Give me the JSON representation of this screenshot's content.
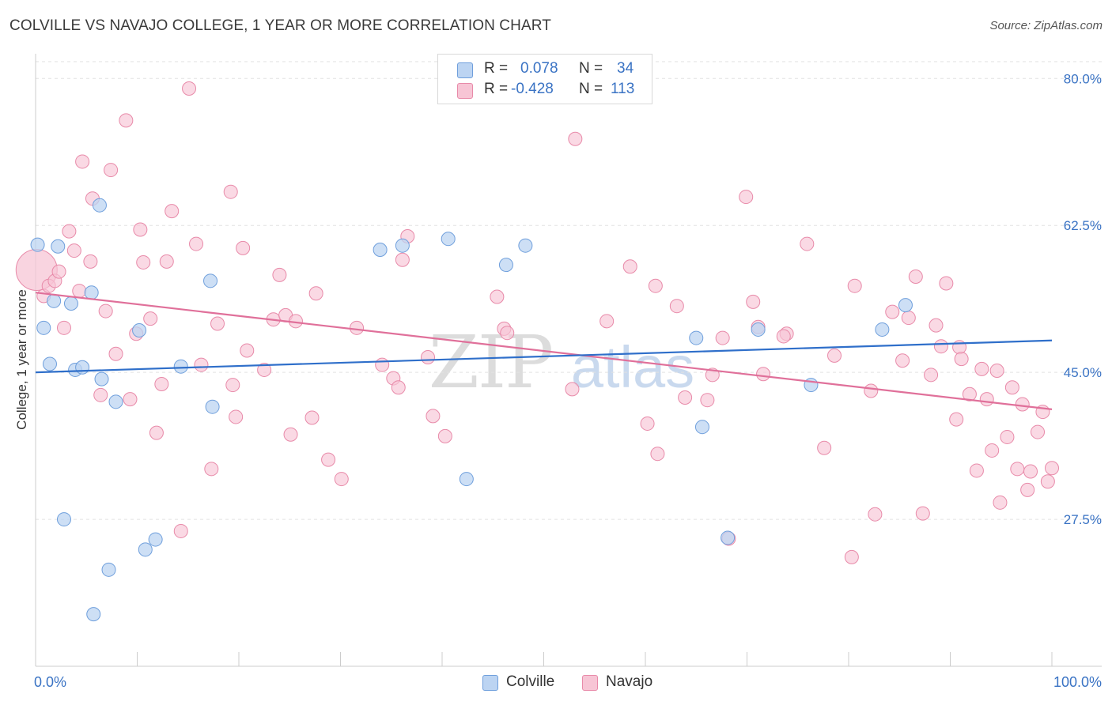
{
  "title": "COLVILLE VS NAVAJO COLLEGE, 1 YEAR OR MORE CORRELATION CHART",
  "source": "Source: ZipAtlas.com",
  "colors": {
    "colville_fill": "#bcd4f2",
    "colville_stroke": "#6f9fdc",
    "colville_line": "#2f6fca",
    "navajo_fill": "#f7c5d5",
    "navajo_stroke": "#e88aa9",
    "navajo_line": "#e0709a",
    "tick_label": "#3a73c4"
  },
  "legend": {
    "rows": [
      {
        "r_label": "R =",
        "r_value": "0.078",
        "n_label": "N =",
        "n_value": "34"
      },
      {
        "r_label": "R =",
        "r_value": "-0.428",
        "n_label": "N =",
        "n_value": "113"
      }
    ]
  },
  "bottom_legend": {
    "colville": "Colville",
    "navajo": "Navajo"
  },
  "chart_data": {
    "type": "scatter",
    "title": "COLVILLE VS NAVAJO COLLEGE, 1 YEAR OR MORE CORRELATION CHART",
    "xlabel": "",
    "ylabel": "College, 1 year or more",
    "xlim": [
      0,
      100
    ],
    "ylim": [
      10,
      82
    ],
    "x_tick_labels": {
      "left": "0.0%",
      "right": "100.0%"
    },
    "y_ticks": [
      {
        "value": 80.0,
        "label": "80.0%"
      },
      {
        "value": 62.5,
        "label": "62.5%"
      },
      {
        "value": 45.0,
        "label": "45.0%"
      },
      {
        "value": 27.5,
        "label": "27.5%"
      }
    ],
    "watermark": "ZIPatlas",
    "series": [
      {
        "name": "Colville",
        "r": 0.078,
        "n": 34,
        "trend": {
          "x": [
            0,
            100
          ],
          "y": [
            45.0,
            48.8
          ]
        },
        "points": [
          [
            0.2,
            60.2
          ],
          [
            0.8,
            50.3
          ],
          [
            1.4,
            46.0
          ],
          [
            1.8,
            53.5
          ],
          [
            2.2,
            60.0
          ],
          [
            2.8,
            27.5
          ],
          [
            3.5,
            53.2
          ],
          [
            3.9,
            45.3
          ],
          [
            4.6,
            45.6
          ],
          [
            5.5,
            54.5
          ],
          [
            6.3,
            64.9
          ],
          [
            6.5,
            44.2
          ],
          [
            7.2,
            21.5
          ],
          [
            5.7,
            16.2
          ],
          [
            7.9,
            41.5
          ],
          [
            10.2,
            50.0
          ],
          [
            10.8,
            23.9
          ],
          [
            11.8,
            25.1
          ],
          [
            14.3,
            45.7
          ],
          [
            17.4,
            40.9
          ],
          [
            17.2,
            55.9
          ],
          [
            33.9,
            59.6
          ],
          [
            36.1,
            60.1
          ],
          [
            40.6,
            60.9
          ],
          [
            42.4,
            32.3
          ],
          [
            46.3,
            57.8
          ],
          [
            48.2,
            60.1
          ],
          [
            65.6,
            38.5
          ],
          [
            65.0,
            49.1
          ],
          [
            71.1,
            50.1
          ],
          [
            68.1,
            25.3
          ],
          [
            76.3,
            43.5
          ],
          [
            83.3,
            50.1
          ],
          [
            85.6,
            53.0
          ]
        ]
      },
      {
        "name": "Navajo",
        "r": -0.428,
        "n": 113,
        "trend": {
          "x": [
            0,
            100
          ],
          "y": [
            54.5,
            40.6
          ]
        },
        "big_point": [
          0.1,
          57.2
        ],
        "points": [
          [
            0.8,
            54.1
          ],
          [
            1.3,
            55.3
          ],
          [
            1.9,
            55.9
          ],
          [
            2.3,
            57.0
          ],
          [
            2.8,
            50.3
          ],
          [
            3.3,
            61.8
          ],
          [
            3.8,
            59.5
          ],
          [
            4.3,
            54.7
          ],
          [
            4.6,
            70.1
          ],
          [
            5.4,
            58.2
          ],
          [
            5.6,
            65.7
          ],
          [
            6.4,
            42.3
          ],
          [
            6.9,
            52.3
          ],
          [
            7.4,
            69.1
          ],
          [
            7.9,
            47.2
          ],
          [
            8.9,
            75.0
          ],
          [
            9.3,
            41.8
          ],
          [
            9.9,
            49.6
          ],
          [
            10.3,
            62.0
          ],
          [
            10.6,
            58.1
          ],
          [
            11.3,
            51.4
          ],
          [
            11.9,
            37.8
          ],
          [
            12.4,
            43.6
          ],
          [
            12.9,
            58.2
          ],
          [
            13.4,
            64.2
          ],
          [
            14.3,
            26.1
          ],
          [
            15.1,
            78.8
          ],
          [
            15.8,
            60.3
          ],
          [
            16.3,
            45.9
          ],
          [
            17.3,
            33.5
          ],
          [
            17.9,
            50.8
          ],
          [
            19.2,
            66.5
          ],
          [
            19.4,
            43.5
          ],
          [
            19.7,
            39.7
          ],
          [
            20.4,
            59.8
          ],
          [
            20.8,
            47.6
          ],
          [
            22.5,
            45.3
          ],
          [
            23.4,
            51.3
          ],
          [
            24.0,
            56.6
          ],
          [
            24.6,
            51.8
          ],
          [
            25.1,
            37.6
          ],
          [
            25.6,
            51.1
          ],
          [
            27.2,
            39.6
          ],
          [
            27.6,
            54.4
          ],
          [
            28.8,
            34.6
          ],
          [
            30.1,
            32.3
          ],
          [
            31.6,
            50.3
          ],
          [
            34.1,
            45.9
          ],
          [
            35.2,
            44.3
          ],
          [
            35.7,
            43.2
          ],
          [
            36.1,
            58.4
          ],
          [
            36.6,
            61.2
          ],
          [
            38.6,
            46.8
          ],
          [
            39.1,
            39.8
          ],
          [
            40.3,
            37.4
          ],
          [
            45.4,
            54.0
          ],
          [
            46.1,
            50.2
          ],
          [
            46.4,
            49.7
          ],
          [
            52.8,
            43.0
          ],
          [
            53.1,
            72.8
          ],
          [
            56.2,
            51.1
          ],
          [
            58.5,
            57.6
          ],
          [
            60.2,
            38.9
          ],
          [
            61.0,
            55.3
          ],
          [
            61.2,
            35.3
          ],
          [
            63.1,
            52.9
          ],
          [
            63.9,
            42.0
          ],
          [
            66.6,
            44.7
          ],
          [
            67.6,
            49.1
          ],
          [
            68.2,
            25.2
          ],
          [
            69.9,
            65.9
          ],
          [
            70.6,
            53.4
          ],
          [
            71.1,
            50.4
          ],
          [
            71.6,
            44.8
          ],
          [
            73.9,
            49.6
          ],
          [
            75.9,
            60.3
          ],
          [
            77.6,
            36.0
          ],
          [
            78.6,
            47.0
          ],
          [
            80.6,
            55.3
          ],
          [
            80.3,
            23.0
          ],
          [
            82.2,
            42.8
          ],
          [
            82.6,
            28.1
          ],
          [
            84.3,
            52.2
          ],
          [
            85.3,
            46.4
          ],
          [
            85.9,
            51.5
          ],
          [
            86.6,
            56.4
          ],
          [
            87.3,
            28.2
          ],
          [
            88.1,
            44.7
          ],
          [
            88.6,
            50.6
          ],
          [
            89.1,
            48.1
          ],
          [
            89.6,
            55.6
          ],
          [
            90.6,
            39.4
          ],
          [
            90.9,
            48.0
          ],
          [
            91.1,
            46.6
          ],
          [
            91.9,
            42.4
          ],
          [
            92.6,
            33.3
          ],
          [
            93.1,
            45.4
          ],
          [
            93.6,
            41.8
          ],
          [
            94.1,
            35.7
          ],
          [
            94.6,
            45.2
          ],
          [
            94.9,
            29.5
          ],
          [
            95.6,
            37.3
          ],
          [
            96.1,
            43.2
          ],
          [
            96.6,
            33.5
          ],
          [
            97.1,
            41.2
          ],
          [
            97.6,
            31.0
          ],
          [
            97.9,
            33.2
          ],
          [
            98.6,
            37.9
          ],
          [
            99.1,
            40.3
          ],
          [
            99.6,
            32.0
          ],
          [
            100.0,
            33.6
          ],
          [
            66.1,
            41.7
          ],
          [
            73.6,
            49.3
          ]
        ]
      }
    ]
  }
}
